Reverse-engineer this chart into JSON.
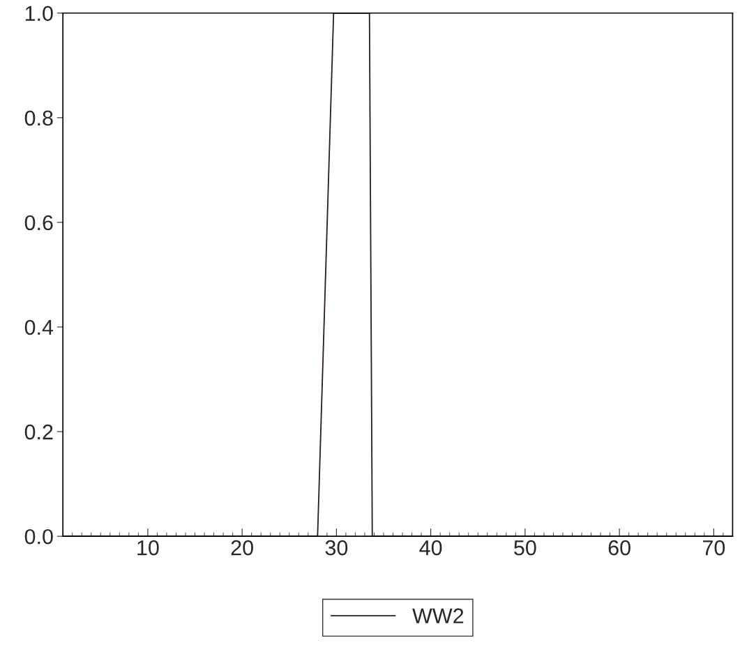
{
  "chart_data": {
    "type": "line",
    "series": [
      {
        "name": "WW2",
        "color": "#2a1a1a",
        "x": [
          1,
          28,
          29.7,
          33.5,
          33.8,
          72
        ],
        "values": [
          0,
          0,
          1,
          1,
          0,
          0
        ]
      }
    ],
    "xlim": [
      1,
      72
    ],
    "xticks": [
      10,
      20,
      30,
      40,
      50,
      60,
      70
    ],
    "ylim": [
      0,
      1
    ],
    "yticks": [
      {
        "value": 0,
        "label": "0.0"
      },
      {
        "value": 0.2,
        "label": "0.2"
      },
      {
        "value": 0.4,
        "label": "0.4"
      },
      {
        "value": 0.6,
        "label": "0.6"
      },
      {
        "value": 0.8,
        "label": "0.8"
      },
      {
        "value": 1,
        "label": "1.0"
      }
    ],
    "grid": false,
    "legend": "bottom",
    "marker": "none",
    "line_style": "solid"
  }
}
